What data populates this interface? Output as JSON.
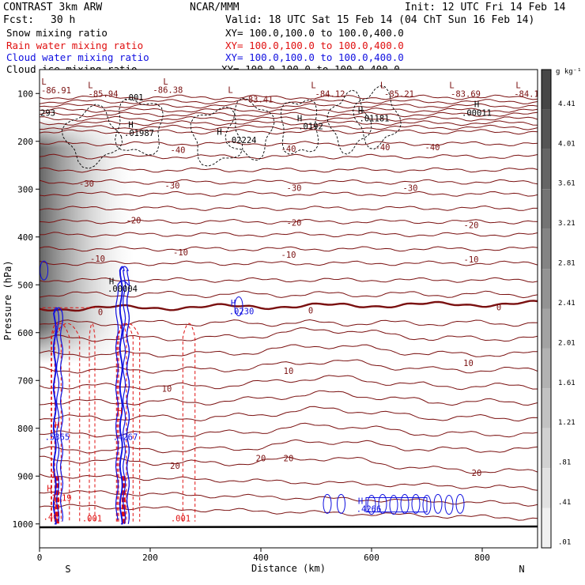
{
  "header": {
    "model": "CONTRAST  3km ARW",
    "center": "NCAR/MMM",
    "init": "Init: 12 UTC Fri 14 Feb 14",
    "fcst_label": "Fcst:",
    "fcst_value": "30 h",
    "valid": "Valid: 18 UTC Sat 15 Feb 14 (04 ChT Sun 16 Feb 14)"
  },
  "fields": [
    {
      "name": "Snow mixing ratio",
      "xy": "XY= 100.0,100.0 to 100.0,400.0",
      "color": "#000000"
    },
    {
      "name": "Rain water mixing ratio",
      "xy": "XY= 100.0,100.0 to 100.0,400.0",
      "color": "#e01010"
    },
    {
      "name": "Cloud water mixing ratio",
      "xy": "XY= 100.0,100.0 to 100.0,400.0",
      "color": "#1010e0"
    },
    {
      "name": "Cloud ice mixing ratio",
      "xy": "XY= 100.0,100.0 to 100.0,400.0",
      "color": "#000000"
    }
  ],
  "colors": {
    "temperature": "#7a1010",
    "rain": "#e01010",
    "cloud_water": "#1010e0",
    "freezing": "#7a1010"
  },
  "chart_data": {
    "type": "cross-section",
    "xlabel": "Distance (km)",
    "ylabel": "Pressure (hPa)",
    "xlim": [
      0,
      900
    ],
    "ylim": [
      1050,
      50
    ],
    "x_ticks": [
      0,
      200,
      400,
      600,
      800
    ],
    "y_ticks": [
      100,
      200,
      300,
      400,
      500,
      600,
      700,
      800,
      900,
      1000
    ],
    "end_labels": {
      "left": "S",
      "right": "N"
    },
    "colorbar": {
      "unit": "g kg⁻¹",
      "labels": [
        "4.41",
        "4.01",
        "3.61",
        "3.21",
        "2.81",
        "2.41",
        "2.01",
        "1.61",
        "1.21",
        ".81",
        ".41",
        ".01"
      ]
    },
    "isotherm_levels_c": [
      -80,
      -70,
      -60,
      -50,
      -40,
      -30,
      -20,
      -10,
      0,
      10,
      20
    ],
    "temperature_labels": [
      {
        "text": "-40",
        "x": 250,
        "p": 218
      },
      {
        "text": "-40",
        "x": 450,
        "p": 215
      },
      {
        "text": "-40",
        "x": 620,
        "p": 212
      },
      {
        "text": "-40",
        "x": 710,
        "p": 212
      },
      {
        "text": "-30",
        "x": 85,
        "p": 288
      },
      {
        "text": "-30",
        "x": 240,
        "p": 292
      },
      {
        "text": "-30",
        "x": 460,
        "p": 297
      },
      {
        "text": "-30",
        "x": 670,
        "p": 297
      },
      {
        "text": "-20",
        "x": 170,
        "p": 365
      },
      {
        "text": "-20",
        "x": 460,
        "p": 370
      },
      {
        "text": "-20",
        "x": 780,
        "p": 375
      },
      {
        "text": "-10",
        "x": 105,
        "p": 445
      },
      {
        "text": "-10",
        "x": 255,
        "p": 432
      },
      {
        "text": "-10",
        "x": 450,
        "p": 437
      },
      {
        "text": "-10",
        "x": 780,
        "p": 447
      },
      {
        "text": "0",
        "x": 110,
        "p": 557
      },
      {
        "text": "0",
        "x": 490,
        "p": 553
      },
      {
        "text": "0",
        "x": 830,
        "p": 547
      },
      {
        "text": "10",
        "x": 230,
        "p": 717
      },
      {
        "text": "10",
        "x": 450,
        "p": 680
      },
      {
        "text": "10",
        "x": 775,
        "p": 663
      },
      {
        "text": "20",
        "x": 400,
        "p": 862
      },
      {
        "text": "20",
        "x": 450,
        "p": 862
      },
      {
        "text": "20",
        "x": 245,
        "p": 878
      },
      {
        "text": "20",
        "x": 790,
        "p": 893
      }
    ],
    "extrema_labels": [
      {
        "text": "L",
        "x": 8,
        "p": 75,
        "color": "#7a1010"
      },
      {
        "text": "-86.91",
        "x": 30,
        "p": 93,
        "color": "#7a1010"
      },
      {
        "text": "L",
        "x": 92,
        "p": 82,
        "color": "#7a1010"
      },
      {
        "text": "-85.94",
        "x": 115,
        "p": 100,
        "color": "#7a1010"
      },
      {
        "text": ".001",
        "x": 170,
        "p": 108,
        "color": "#000000"
      },
      {
        "text": "L",
        "x": 228,
        "p": 75,
        "color": "#7a1010"
      },
      {
        "text": "-86.38",
        "x": 232,
        "p": 92,
        "color": "#7a1010"
      },
      {
        "text": "L",
        "x": 345,
        "p": 92,
        "color": "#7a1010"
      },
      {
        "text": "-83.41",
        "x": 395,
        "p": 112,
        "color": "#7a1010"
      },
      {
        "text": "L",
        "x": 495,
        "p": 82,
        "color": "#7a1010"
      },
      {
        "text": "-84.12",
        "x": 525,
        "p": 100,
        "color": "#7a1010"
      },
      {
        "text": "L",
        "x": 620,
        "p": 82,
        "color": "#7a1010"
      },
      {
        "text": "-85.21",
        "x": 650,
        "p": 100,
        "color": "#7a1010"
      },
      {
        "text": "L",
        "x": 745,
        "p": 82,
        "color": "#7a1010"
      },
      {
        "text": "-83.69",
        "x": 770,
        "p": 100,
        "color": "#7a1010"
      },
      {
        "text": "L",
        "x": 865,
        "p": 82,
        "color": "#7a1010"
      },
      {
        "text": "-84.1",
        "x": 880,
        "p": 100,
        "color": "#7a1010"
      },
      {
        "text": "293",
        "x": 15,
        "p": 140,
        "color": "#000000"
      },
      {
        "text": "H",
        "x": 165,
        "p": 165,
        "color": "#000000"
      },
      {
        "text": ".01987",
        "x": 180,
        "p": 182,
        "color": "#000000"
      },
      {
        "text": "H",
        "x": 325,
        "p": 180,
        "color": "#000000"
      },
      {
        "text": ".02224",
        "x": 365,
        "p": 197,
        "color": "#000000"
      },
      {
        "text": "H",
        "x": 470,
        "p": 152,
        "color": "#000000"
      },
      {
        "text": ".0192",
        "x": 490,
        "p": 168,
        "color": "#000000"
      },
      {
        "text": "H",
        "x": 580,
        "p": 135,
        "color": "#000000"
      },
      {
        "text": ".01181",
        "x": 605,
        "p": 152,
        "color": "#000000"
      },
      {
        "text": "H",
        "x": 790,
        "p": 122,
        "color": "#000000"
      },
      {
        "text": ".00011",
        "x": 790,
        "p": 140,
        "color": "#000000"
      },
      {
        "text": "H",
        "x": 130,
        "p": 492,
        "color": "#000000"
      },
      {
        "text": ".00004",
        "x": 150,
        "p": 508,
        "color": "#000000"
      },
      {
        "text": "H",
        "x": 350,
        "p": 538,
        "color": "#1010e0"
      },
      {
        "text": ".0230",
        "x": 365,
        "p": 555,
        "color": "#1010e0"
      },
      {
        "text": "H",
        "x": 145,
        "p": 763,
        "color": "#e01010"
      },
      {
        "text": "H",
        "x": 32,
        "p": 793,
        "color": "#e01010"
      },
      {
        "text": ".5365",
        "x": 32,
        "p": 818,
        "color": "#1010e0"
      },
      {
        "text": ".4267",
        "x": 155,
        "p": 818,
        "color": "#1010e0"
      },
      {
        "text": "H",
        "x": 580,
        "p": 952,
        "color": "#1010e0"
      },
      {
        "text": ".4266",
        "x": 595,
        "p": 968,
        "color": "#1010e0"
      },
      {
        "text": ".001",
        "x": 95,
        "p": 988,
        "color": "#e01010"
      },
      {
        "text": ".001",
        "x": 255,
        "p": 988,
        "color": "#e01010"
      },
      {
        "text": "H",
        "x": 18,
        "p": 925,
        "color": "#e01010"
      },
      {
        "text": "1.19",
        "x": 40,
        "p": 945,
        "color": "#e01010"
      },
      {
        "text": ".40",
        "x": 20,
        "p": 985,
        "color": "#e01010"
      },
      {
        "text": "1",
        "x": 25,
        "p": 897,
        "color": "#e01010"
      }
    ],
    "freezing_level_p": 550,
    "snow_max_g_kg": 4.41
  }
}
